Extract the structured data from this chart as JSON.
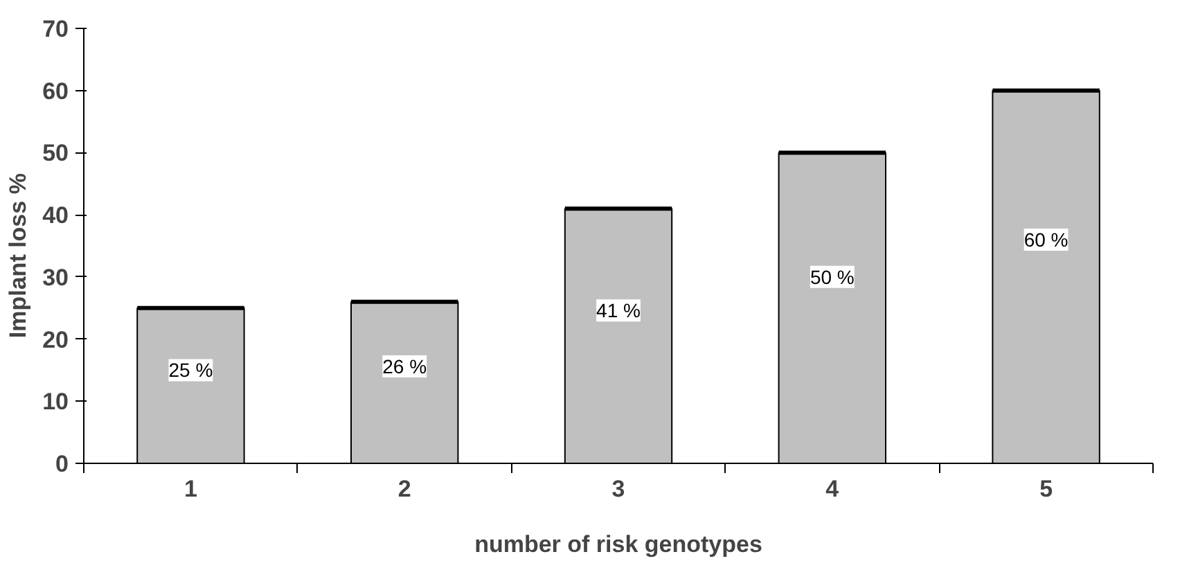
{
  "chart_data": {
    "type": "bar",
    "xlabel": "number of risk genotypes",
    "ylabel": "Implant loss    %",
    "categories": [
      "1",
      "2",
      "3",
      "4",
      "5"
    ],
    "values": [
      25,
      26,
      41,
      50,
      60
    ],
    "value_labels": [
      "25 %",
      "26 %",
      "41 %",
      "50 %",
      "60 %"
    ],
    "color": "#c0c0c0",
    "ylim": [
      0,
      70
    ],
    "yticks": [
      0,
      10,
      20,
      30,
      40,
      50,
      60,
      70
    ],
    "grid": false
  }
}
